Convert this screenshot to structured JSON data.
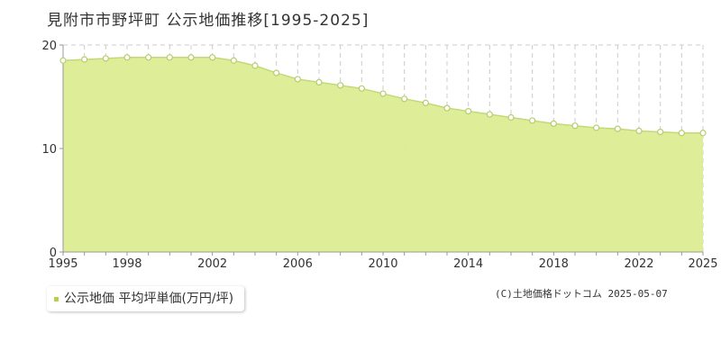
{
  "chart_data": {
    "type": "area",
    "title": "見附市市野坪町 公示地価推移[1995-2025]",
    "xlabel": "",
    "ylabel": "",
    "x": [
      1995,
      1996,
      1997,
      1998,
      1999,
      2000,
      2001,
      2002,
      2003,
      2004,
      2005,
      2006,
      2007,
      2008,
      2009,
      2010,
      2011,
      2012,
      2013,
      2014,
      2015,
      2016,
      2017,
      2018,
      2019,
      2020,
      2021,
      2022,
      2023,
      2024,
      2025
    ],
    "series": [
      {
        "name": "公示地価 平均坪単価(万円/坪)",
        "values": [
          18.5,
          18.6,
          18.7,
          18.8,
          18.8,
          18.8,
          18.8,
          18.8,
          18.5,
          18.0,
          17.3,
          16.7,
          16.4,
          16.1,
          15.8,
          15.3,
          14.8,
          14.4,
          13.9,
          13.6,
          13.3,
          13.0,
          12.7,
          12.4,
          12.2,
          12.0,
          11.9,
          11.7,
          11.6,
          11.5,
          11.5
        ]
      }
    ],
    "xticks": [
      1995,
      1998,
      2002,
      2006,
      2010,
      2014,
      2018,
      2022,
      2025
    ],
    "yticks": [
      0,
      10,
      20
    ],
    "xlim": [
      1995,
      2025
    ],
    "ylim": [
      0,
      20
    ],
    "grid": true,
    "legend_position": "bottom-left",
    "colors": {
      "fill": "#dcec92",
      "line": "#c2d97a",
      "marker_fill": "#ffffff",
      "marker_stroke": "#b5cd6b",
      "legend_marker": "#b7d04a",
      "grid": "#cccccc",
      "axis": "#999999"
    }
  },
  "legend": {
    "label": "公示地価 平均坪単価(万円/坪)"
  },
  "copyright": "(C)土地価格ドットコム 2025-05-07"
}
